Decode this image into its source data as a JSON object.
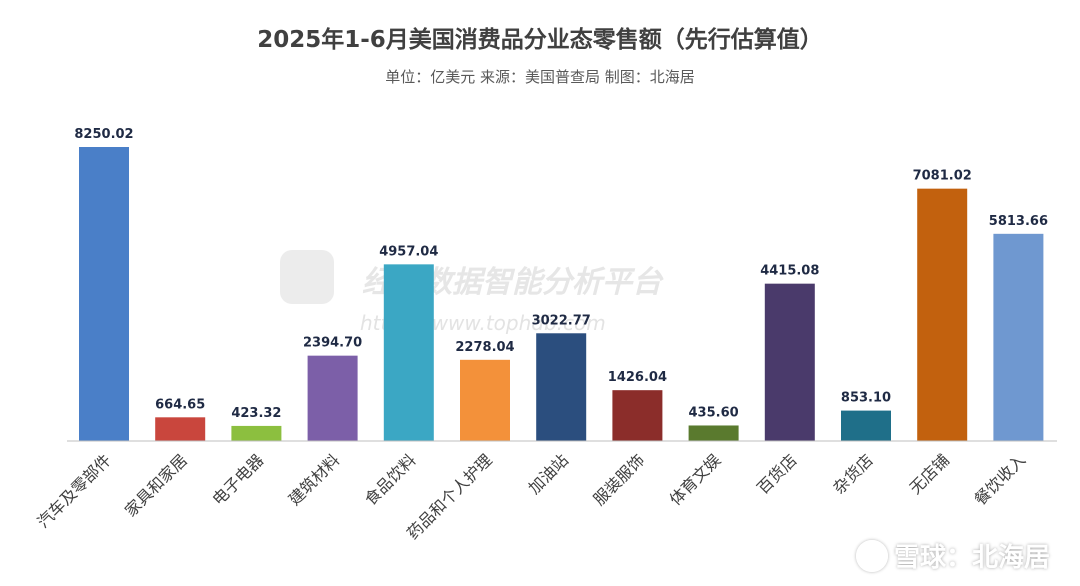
{
  "header": {
    "title": "2025年1-6月美国消费品分业态零售额（先行估算值）",
    "subtitle": "单位：亿美元 来源：美国普查局 制图：北海居"
  },
  "watermark": {
    "text": "经济数据智能分析平台",
    "url": "https://www.tophdb.com"
  },
  "credit": {
    "text": "雪球：北海居",
    "icon": "snowball-logo-icon"
  },
  "chart_data": {
    "type": "bar",
    "title": "2025年1-6月美国消费品分业态零售额（先行估算值）",
    "unit": "亿美元",
    "categories": [
      "汽车及零部件",
      "家具和家居",
      "电子电器",
      "建筑材料",
      "食品饮料",
      "药品和个人护理",
      "加油站",
      "服装服饰",
      "体育文娱",
      "百货店",
      "杂货店",
      "无店铺",
      "餐饮收入"
    ],
    "values": [
      8250.02,
      664.65,
      423.32,
      2394.7,
      4957.04,
      2278.04,
      3022.77,
      1426.04,
      435.6,
      4415.08,
      853.1,
      7081.02,
      5813.66
    ],
    "value_labels": [
      "8250.02",
      "664.65",
      "423.32",
      "2394.70",
      "4957.04",
      "2278.04",
      "3022.77",
      "1426.04",
      "435.60",
      "4415.08",
      "853.10",
      "7081.02",
      "5813.66"
    ],
    "colors": [
      "#4a7fc8",
      "#c9463d",
      "#8cbf3f",
      "#7c5fa8",
      "#3ba7c4",
      "#f3913a",
      "#2b4e7e",
      "#8b2d2a",
      "#5a7a2e",
      "#4a3a6b",
      "#1f6f89",
      "#c2610e",
      "#6f98d0"
    ],
    "ylim": [
      0,
      8250.02
    ],
    "grid": false,
    "legend": "none"
  }
}
